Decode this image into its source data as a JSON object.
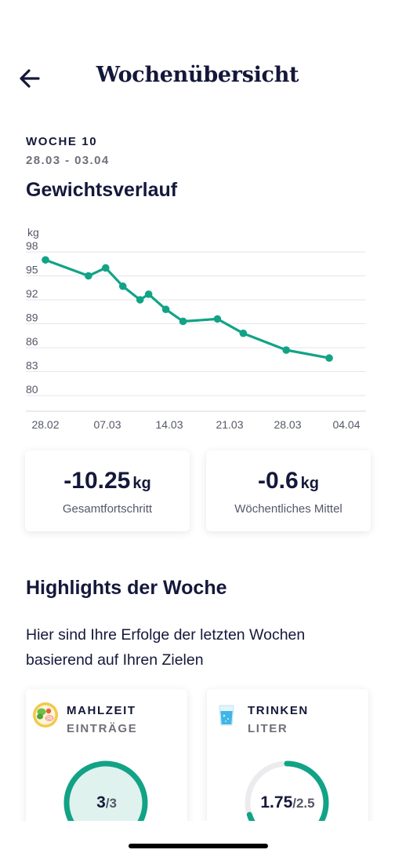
{
  "header": {
    "title": "Wochenübersicht",
    "back_icon": "arrow-left-icon"
  },
  "week": {
    "label": "WOCHE 10",
    "range": "28.03 - 03.04"
  },
  "chart_title": "Gewichtsverlauf",
  "chart_data": {
    "type": "line",
    "title": "Gewichtsverlauf",
    "ylabel": "kg",
    "xlabel": "",
    "y_ticks": [
      98,
      95,
      92,
      89,
      86,
      83,
      80
    ],
    "ylim": [
      78,
      98
    ],
    "x_ticks": [
      "28.02",
      "07.03",
      "14.03",
      "21.03",
      "28.03",
      "04.04"
    ],
    "x": [
      "28.02",
      "05.03",
      "07.03",
      "09.03",
      "11.03",
      "12.03",
      "14.03",
      "16.03",
      "20.03",
      "23.03",
      "28.03",
      "02.04"
    ],
    "values": [
      97.0,
      95.0,
      96.0,
      93.7,
      92.0,
      92.7,
      90.8,
      89.3,
      89.6,
      87.8,
      85.7,
      84.7
    ],
    "grid": true,
    "color": "#12a386"
  },
  "stats": {
    "total": {
      "value": "-10.25",
      "unit": "kg",
      "label": "Gesamtfortschritt"
    },
    "weekly": {
      "value": "-0.6",
      "unit": "kg",
      "label": "Wöchentliches Mittel"
    }
  },
  "highlights": {
    "title": "Highlights der Woche",
    "description": "Hier sind Ihre Erfolge der letzten Wochen basierend auf Ihren Zielen",
    "cards": [
      {
        "icon": "salad-plate-icon",
        "title": "MAHLZEIT",
        "subtitle": "EINTRÄGE",
        "value": "3",
        "total": "/3",
        "progress": 1.0
      },
      {
        "icon": "water-glass-icon",
        "title": "TRINKEN",
        "subtitle": "LITER",
        "value": "1.75",
        "total": "/2.5",
        "progress": 0.7
      }
    ]
  },
  "colors": {
    "accent": "#12a386",
    "accent_light": "#dff2ee",
    "text_dark": "#14183a",
    "text_muted": "#6f7079",
    "grid": "#e6e6ea"
  }
}
